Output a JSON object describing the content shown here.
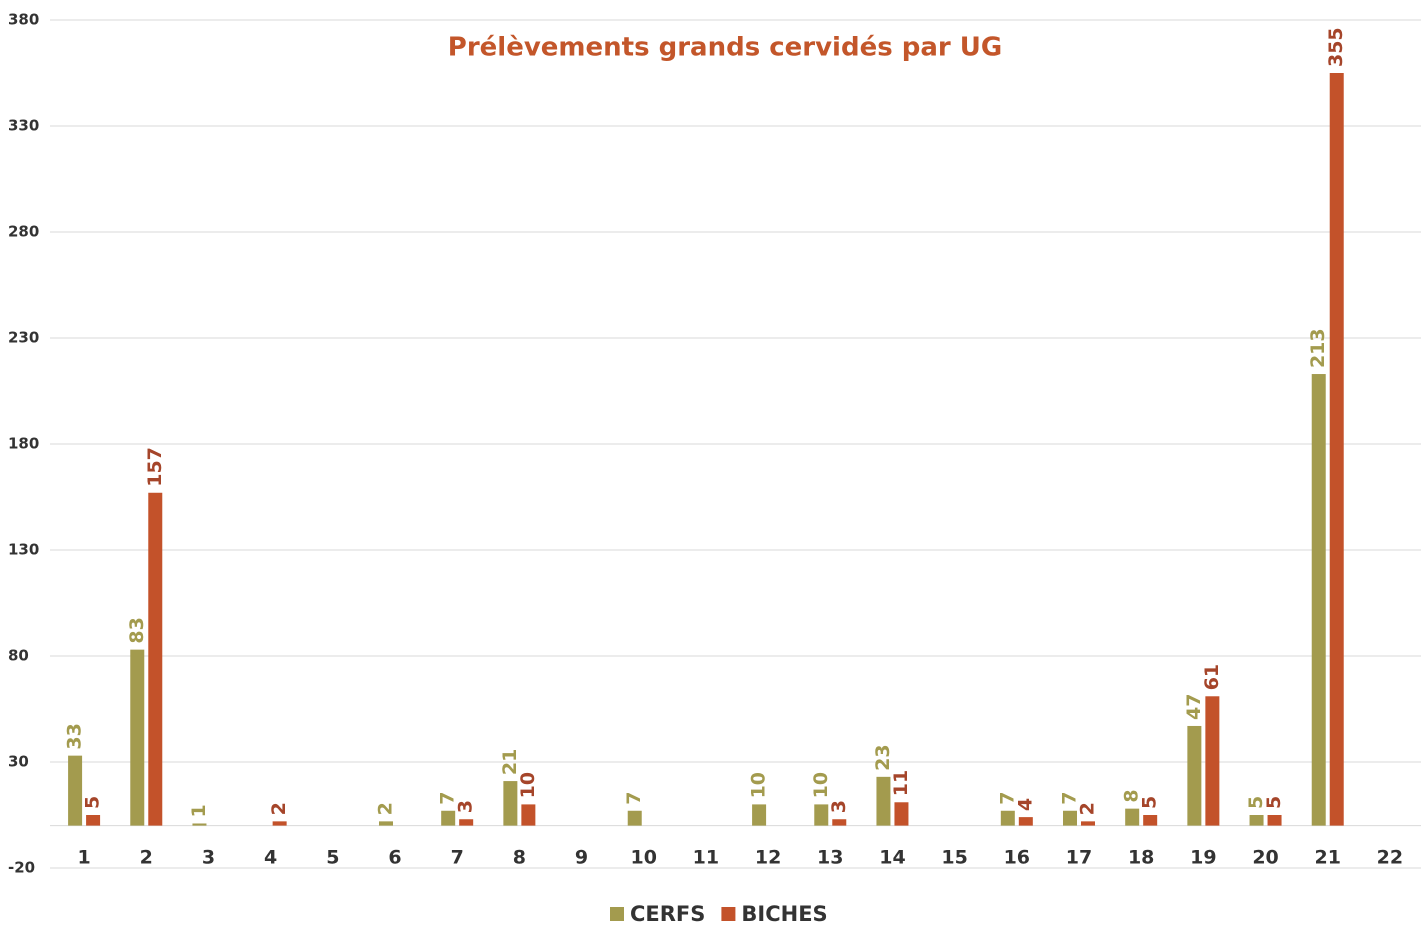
{
  "chart_data": {
    "type": "bar",
    "title": "Prélèvements  grands cervidés par UG",
    "categories": [
      "1",
      "2",
      "3",
      "4",
      "5",
      "6",
      "7",
      "8",
      "9",
      "10",
      "11",
      "12",
      "13",
      "14",
      "15",
      "16",
      "17",
      "18",
      "19",
      "20",
      "21",
      "22"
    ],
    "series": [
      {
        "name": "CERFS",
        "color": "#a39b4e",
        "values": [
          33,
          83,
          1,
          null,
          null,
          2,
          7,
          21,
          null,
          7,
          null,
          10,
          10,
          23,
          null,
          7,
          7,
          8,
          47,
          5,
          213,
          null
        ]
      },
      {
        "name": "BICHES",
        "color": "#c3522a",
        "values": [
          5,
          157,
          null,
          2,
          null,
          null,
          3,
          10,
          null,
          null,
          null,
          null,
          3,
          11,
          null,
          4,
          2,
          5,
          61,
          5,
          355,
          null
        ]
      }
    ],
    "ylim": [
      -20,
      380
    ],
    "yticks": [
      -20,
      30,
      80,
      130,
      180,
      230,
      280,
      330,
      380
    ],
    "grid": true,
    "legend": "bottom"
  }
}
